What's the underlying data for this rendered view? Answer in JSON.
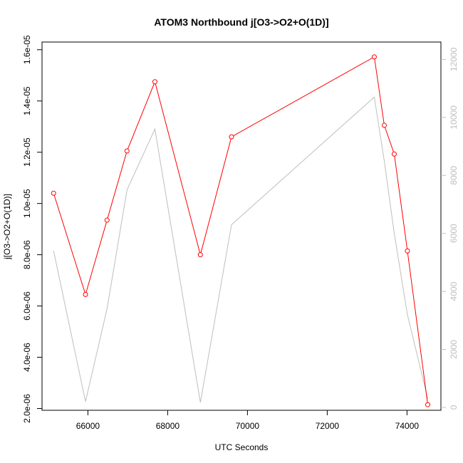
{
  "chart_data": {
    "type": "line",
    "title": "ATOM3 Northbound j[O3->O2+O(1D)]",
    "xlabel": "UTC Seconds",
    "ylabel": "j[O3->O2+O(1D)]",
    "xlim": [
      64850,
      74850
    ],
    "ylim": [
      1.93e-06,
      1.63e-05
    ],
    "y2lim": [
      -100,
      12600
    ],
    "x_ticks": [
      66000,
      68000,
      70000,
      72000,
      74000
    ],
    "x_tick_labels": [
      "66000",
      "68000",
      "70000",
      "72000",
      "74000"
    ],
    "y_ticks": [
      2e-06,
      4e-06,
      6e-06,
      8e-06,
      1e-05,
      1.2e-05,
      1.4e-05,
      1.6e-05
    ],
    "y_tick_labels": [
      "2.0e-06",
      "4.0e-06",
      "6.0e-06",
      "8.0e-06",
      "1.0e-05",
      "1.2e-05",
      "1.4e-05",
      "1.6e-05"
    ],
    "y2_ticks": [
      0,
      2000,
      4000,
      6000,
      8000,
      10000,
      12000
    ],
    "y2_tick_labels": [
      "0",
      "2000",
      "4000",
      "6000",
      "8000",
      "10000",
      "12000"
    ],
    "series": [
      {
        "color": "#ff0000",
        "axis": "left",
        "marker": "open-circle",
        "x": [
          65140,
          65940,
          66480,
          66980,
          67680,
          68820,
          69600,
          73180,
          73430,
          73680,
          74010,
          74520
        ],
        "values": [
          1.04e-05,
          6.45e-06,
          9.35e-06,
          1.205e-05,
          1.475e-05,
          8e-06,
          1.26e-05,
          1.572e-05,
          1.305e-05,
          1.193e-05,
          8.15e-06,
          2.15e-06
        ]
      },
      {
        "color": "#bebebe",
        "axis": "right",
        "marker": "none",
        "x": [
          65140,
          65940,
          66480,
          66980,
          67680,
          68820,
          69600,
          73180,
          73430,
          73680,
          74010,
          74520
        ],
        "values": [
          5400,
          200,
          3400,
          7500,
          9600,
          170,
          6300,
          10700,
          8500,
          6000,
          3200,
          300
        ]
      }
    ],
    "grid": false,
    "legend": "none"
  }
}
